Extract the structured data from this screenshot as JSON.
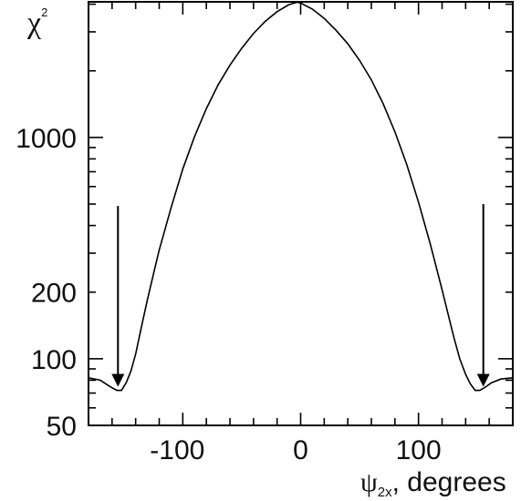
{
  "chart_data": {
    "type": "line",
    "ylabel": {
      "symbol": "χ",
      "superscript": "2"
    },
    "xlabel": {
      "symbol": "ψ",
      "subscript": "2x",
      "rest": ", degrees"
    },
    "xlim": [
      -180,
      180
    ],
    "ylim": [
      50,
      4100
    ],
    "yscale": "log",
    "grid": false,
    "x_ticks": [
      -100,
      0,
      100
    ],
    "x_tick_labels": [
      "-100",
      "0",
      "100"
    ],
    "y_ticks": [
      50,
      100,
      200,
      1000
    ],
    "y_tick_labels": [
      "50",
      "100",
      "200",
      "1000"
    ],
    "series": [
      {
        "x": [
          -180,
          -170,
          -162,
          -156,
          -152,
          -148,
          -144,
          -140,
          -135,
          -130,
          -125,
          -120,
          -110,
          -100,
          -90,
          -80,
          -70,
          -60,
          -50,
          -40,
          -30,
          -20,
          -10,
          -3,
          0,
          10,
          20,
          30,
          40,
          50,
          60,
          70,
          80,
          90,
          100,
          110,
          120,
          125,
          130,
          135,
          140,
          144,
          148,
          152,
          156,
          162,
          170,
          180
        ],
        "y": [
          82,
          80,
          75,
          72,
          72,
          78,
          88,
          105,
          140,
          185,
          240,
          310,
          480,
          720,
          1010,
          1350,
          1730,
          2120,
          2530,
          2950,
          3350,
          3700,
          3980,
          4080,
          4050,
          3800,
          3450,
          3050,
          2650,
          2230,
          1820,
          1420,
          1060,
          755,
          510,
          330,
          205,
          160,
          125,
          100,
          85,
          77,
          72,
          72,
          74,
          78,
          81,
          82
        ]
      }
    ],
    "annotations": [
      {
        "type": "arrow",
        "x": -155,
        "y_from": 490,
        "y_to": 72
      },
      {
        "type": "arrow",
        "x": 155,
        "y_from": 500,
        "y_to": 72
      }
    ]
  }
}
